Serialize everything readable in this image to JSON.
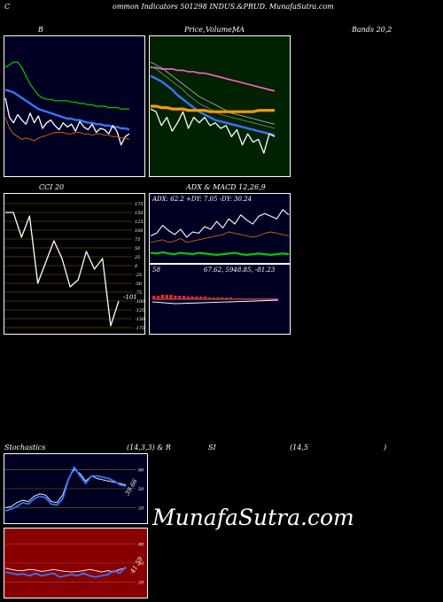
{
  "header": {
    "c": "C",
    "text": "ommon  Indicators 501298  INDUS.&PRUD. MunafaSutra.com"
  },
  "watermark": "MunafaSutra.com",
  "colors": {
    "background": "#000000",
    "navy_panel": "#000022",
    "green_panel": "#002200",
    "olive_panel": "#000000",
    "red_panel": "#880000",
    "blue_line": "#3377ff",
    "white_line": "#ffffff",
    "green_line": "#00cc00",
    "orange_line": "#cc6600",
    "gold_band": "#ff9900",
    "pink_line": "#ff66cc",
    "grid_gold": "#886600",
    "grid_red": "#aa4444"
  },
  "chart_data": [
    {
      "id": "bollinger",
      "type": "line",
      "title_parts": [
        "B",
        "Bands 20,2"
      ],
      "series": [
        {
          "color": "green",
          "values": [
            78,
            80,
            82,
            82,
            78,
            72,
            66,
            62,
            58,
            56,
            55,
            55,
            54,
            54,
            54,
            54,
            53,
            53,
            52,
            52,
            51,
            51,
            50,
            50,
            50,
            49,
            49,
            49,
            48,
            48,
            48
          ]
        },
        {
          "color": "blue",
          "values": [
            62,
            61,
            60,
            58,
            56,
            54,
            52,
            50,
            48,
            47,
            46,
            45,
            44,
            43,
            42,
            41,
            41,
            40,
            40,
            39,
            38,
            38,
            37,
            37,
            36,
            36,
            35,
            35,
            34,
            34,
            33
          ]
        },
        {
          "color": "white",
          "values": [
            56,
            42,
            38,
            44,
            40,
            37,
            45,
            38,
            43,
            34,
            38,
            40,
            36,
            33,
            38,
            35,
            37,
            32,
            39,
            35,
            33,
            37,
            31,
            34,
            33,
            30,
            36,
            32,
            22,
            28,
            30
          ]
        },
        {
          "color": "orange",
          "values": [
            42,
            34,
            30,
            28,
            26,
            27,
            26,
            25,
            27,
            28,
            29,
            30,
            31,
            31,
            31,
            30,
            30,
            31,
            31,
            30,
            30,
            29,
            30,
            30,
            29,
            29,
            28,
            28,
            27,
            27,
            26
          ]
        }
      ]
    },
    {
      "id": "price-ma",
      "type": "line",
      "title_parts": [
        "Price,",
        "Volume,",
        "MA"
      ],
      "series": [
        {
          "color": "pink",
          "values": [
            78,
            78,
            77,
            77,
            77,
            76,
            76,
            75,
            75,
            74,
            74,
            73,
            72,
            71,
            70,
            69,
            68,
            67,
            66,
            65,
            64,
            63,
            62,
            61
          ]
        },
        {
          "color": "gray-1",
          "values": [
            82,
            80,
            78,
            75,
            72,
            69,
            66,
            63,
            60,
            57,
            55,
            53,
            51,
            49,
            47,
            45,
            44,
            43,
            42,
            41,
            40,
            39,
            38,
            37
          ]
        },
        {
          "color": "gray-2",
          "values": [
            79,
            77,
            74,
            71,
            68,
            65,
            62,
            58,
            55,
            52,
            50,
            48,
            46,
            44,
            43,
            42,
            41,
            40,
            39,
            38,
            37,
            36,
            35,
            34
          ]
        },
        {
          "color": "blue",
          "values": [
            72,
            70,
            68,
            65,
            62,
            58,
            55,
            52,
            49,
            46,
            44,
            42,
            40,
            39,
            38,
            37,
            36,
            35,
            34,
            33,
            32,
            31,
            30,
            29
          ]
        },
        {
          "color": "gold",
          "values": [
            50,
            50,
            49,
            49,
            48,
            48,
            48,
            47,
            47,
            47,
            47,
            46,
            46,
            46,
            46,
            46,
            46,
            46,
            46,
            46,
            47,
            47,
            47,
            47
          ]
        },
        {
          "color": "white",
          "values": [
            48,
            46,
            36,
            42,
            32,
            38,
            46,
            34,
            42,
            38,
            42,
            36,
            38,
            34,
            36,
            28,
            33,
            22,
            30,
            24,
            26,
            16,
            30,
            28
          ]
        }
      ]
    },
    {
      "id": "cci",
      "type": "line",
      "title": "CCI 20",
      "ylim": [
        -175,
        175
      ],
      "ticks": [
        175,
        150,
        125,
        100,
        75,
        50,
        25,
        0,
        -25,
        -50,
        -75,
        -100,
        -125,
        -150,
        -175
      ],
      "values": [
        150,
        150,
        80,
        140,
        -50,
        10,
        70,
        20,
        -60,
        -40,
        40,
        -10,
        20,
        -170,
        -100
      ],
      "annotation": "-101"
    },
    {
      "id": "adx",
      "type": "line",
      "title": "ADX  & MACD 12,26,9",
      "annotation": "ADX: 62.2  +DY: 7.05 -DY: 30.24",
      "series": [
        {
          "color": "white",
          "values": [
            40,
            44,
            56,
            48,
            42,
            50,
            38,
            46,
            44,
            54,
            50,
            62,
            52,
            66,
            58,
            72,
            64,
            58,
            70,
            74,
            70,
            66,
            80,
            72
          ]
        },
        {
          "color": "orange",
          "values": [
            30,
            32,
            34,
            30,
            32,
            36,
            30,
            32,
            34,
            36,
            38,
            40,
            42,
            46,
            44,
            42,
            40,
            38,
            40,
            44,
            46,
            44,
            42,
            40
          ]
        },
        {
          "color": "green",
          "values": [
            14,
            13,
            15,
            13,
            12,
            14,
            13,
            12,
            14,
            13,
            12,
            11,
            12,
            13,
            14,
            12,
            11,
            12,
            13,
            12,
            11,
            12,
            13,
            12
          ]
        }
      ]
    },
    {
      "id": "macd",
      "type": "bar",
      "annotation_left": "58",
      "annotation_right": "67.62,  5948.85,  -81.23",
      "bars": [
        4,
        4,
        5,
        5,
        5,
        4,
        4,
        4,
        3,
        3,
        3,
        3,
        3,
        2,
        2,
        2,
        2,
        2,
        2,
        1,
        1,
        1,
        1,
        1,
        1,
        1,
        1,
        1,
        1
      ]
    },
    {
      "id": "stochastics",
      "type": "line",
      "title_parts": [
        "Stochastics",
        "(14,3,3) & R",
        "SI",
        "(14,5",
        ")"
      ],
      "ylim": [
        0,
        100
      ],
      "ticks": [
        80,
        50,
        20
      ],
      "annotation": "39.66",
      "series": [
        {
          "color": "white",
          "values": [
            20,
            22,
            28,
            32,
            30,
            38,
            42,
            40,
            30,
            28,
            40,
            66,
            80,
            74,
            62,
            70,
            66,
            64,
            62,
            60,
            58,
            56
          ]
        },
        {
          "color": "blue",
          "values": [
            15,
            18,
            22,
            28,
            26,
            34,
            38,
            36,
            26,
            24,
            34,
            64,
            84,
            70,
            58,
            70,
            70,
            68,
            66,
            62,
            56,
            54
          ]
        }
      ]
    },
    {
      "id": "rsi",
      "type": "line",
      "ylim": [
        0,
        100
      ],
      "ticks": [
        80,
        50,
        20
      ],
      "annotation": "41.59",
      "series": [
        {
          "color": "white",
          "values": [
            42,
            40,
            38,
            38,
            40,
            39,
            37,
            38,
            40,
            38,
            37,
            36,
            37,
            38,
            40,
            38,
            36,
            38,
            36,
            40,
            42
          ]
        },
        {
          "color": "blue",
          "values": [
            36,
            34,
            32,
            33,
            30,
            34,
            30,
            32,
            34,
            28,
            30,
            32,
            30,
            34,
            30,
            28,
            30,
            32,
            38,
            34,
            44
          ]
        }
      ]
    }
  ]
}
